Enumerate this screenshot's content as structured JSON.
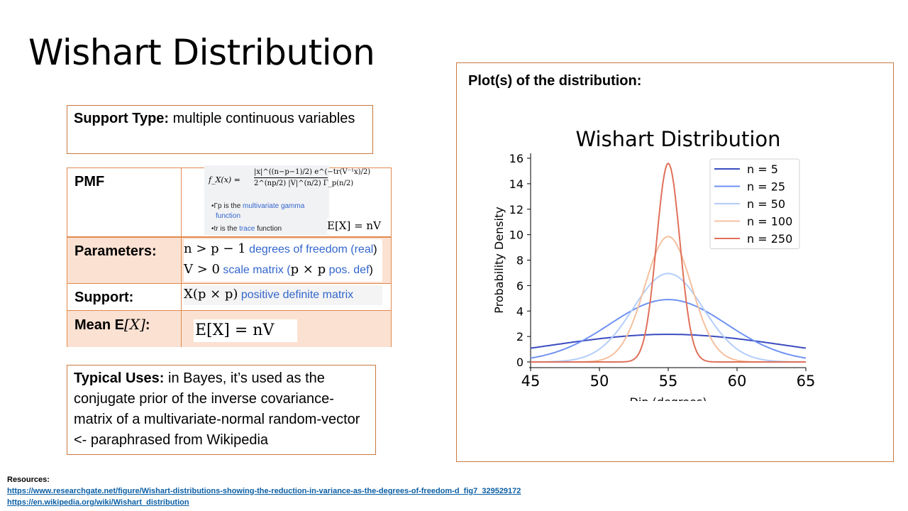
{
  "slide": {
    "title": "Wishart Distribution"
  },
  "support_type": {
    "label": "Support Type:",
    "value": " multiple continuous variables"
  },
  "pmf_table": {
    "pmf_label": "PMF",
    "formula_lhs": "f_X(x) =",
    "formula_num": "|x|^((n−p−1)/2) e^(−tr(V⁻¹x)/2)",
    "formula_den": "2^(np/2) |V|^(n/2) Γ_p(n/2)",
    "bullet_gamma_pre": "•Γp is the ",
    "bullet_gamma_link": "multivariate gamma",
    "bullet_gamma_link2": "function",
    "bullet_trace_pre": "•tr is the ",
    "bullet_trace_link": "trace",
    "bullet_trace_post": " function",
    "pmf_mean": "E[X] = nV",
    "params_label": "Parameters:",
    "param1_math": "n > p − 1",
    "param1_text": " degrees of freedom (",
    "param1_link": "real",
    "param1_end": ")",
    "param2_math": "V > 0",
    "param2_text": " scale matrix (",
    "param2_math2": "p × p",
    "param2_link": " pos. def",
    "param2_end": ")",
    "support_label": "Support:",
    "support_math": "X(p × p)",
    "support_link": " positive definite matrix",
    "mean_label": "Mean E",
    "mean_label_math": "[X]",
    "mean_label_end": ":",
    "mean_value": "E[X] = nV"
  },
  "typical_uses": {
    "label": "Typical Uses:",
    "value": " in Bayes, it’s used as the conjugate prior of the inverse covariance-matrix of a multivariate-normal random-vector <- paraphrased from Wikipedia"
  },
  "plot_panel": {
    "heading": "Plot(s) of the distribution:"
  },
  "chart_data": {
    "type": "line",
    "title": "Wishart Distribution",
    "xlabel": "Dip (degrees)",
    "ylabel": "Probability Density",
    "xlim": [
      45,
      65
    ],
    "ylim": [
      0,
      16
    ],
    "xticks": [
      45,
      50,
      55,
      60,
      65
    ],
    "yticks": [
      0,
      2,
      4,
      6,
      8,
      10,
      12,
      14,
      16
    ],
    "legend_position": "top-right",
    "grid": false,
    "x": [
      45,
      46,
      47,
      48,
      49,
      50,
      51,
      52,
      53,
      54,
      55,
      56,
      57,
      58,
      59,
      60,
      61,
      62,
      63,
      64,
      65
    ],
    "series": [
      {
        "name": "n = 5",
        "color": "#3a4cc0",
        "values": [
          1.4,
          1.52,
          1.64,
          1.76,
          1.87,
          1.96,
          2.04,
          2.1,
          2.14,
          2.16,
          2.17,
          2.16,
          2.14,
          2.1,
          2.04,
          1.96,
          1.87,
          1.76,
          1.64,
          1.52,
          1.4
        ]
      },
      {
        "name": "n = 25",
        "color": "#6f92f3",
        "values": [
          0.5,
          0.76,
          1.1,
          1.55,
          2.1,
          2.7,
          3.3,
          3.9,
          4.4,
          4.75,
          4.9,
          4.75,
          4.4,
          3.9,
          3.3,
          2.7,
          2.1,
          1.55,
          1.1,
          0.76,
          0.5
        ]
      },
      {
        "name": "n = 50",
        "color": "#b4cdfa",
        "values": [
          0.06,
          0.16,
          0.37,
          0.75,
          1.35,
          2.15,
          3.1,
          4.2,
          5.3,
          6.3,
          6.95,
          6.3,
          5.3,
          4.2,
          3.1,
          2.15,
          1.35,
          0.75,
          0.37,
          0.16,
          0.06
        ]
      },
      {
        "name": "n = 100",
        "color": "#f5c0a0",
        "values": [
          0.0,
          0.0,
          0.01,
          0.05,
          0.2,
          0.6,
          1.4,
          2.9,
          5.1,
          7.9,
          9.85,
          7.9,
          5.1,
          2.9,
          1.4,
          0.6,
          0.2,
          0.05,
          0.01,
          0.0,
          0.0
        ]
      },
      {
        "name": "n = 250",
        "color": "#e0705a",
        "values": [
          0.0,
          0.0,
          0.0,
          0.0,
          0.0,
          0.02,
          0.2,
          1.2,
          4.3,
          10.6,
          15.6,
          10.6,
          4.3,
          1.2,
          0.2,
          0.02,
          0.0,
          0.0,
          0.0,
          0.0,
          0.0
        ]
      }
    ]
  },
  "resources": {
    "title": "Resources:",
    "link1": "https://www.researchgate.net/figure/Wishart-distributions-showing-the-reduction-in-variance-as-the-degrees-of-freedom-d_fig7_329529172",
    "link2": "https://en.wikipedia.org/wiki/Wishart_distribution"
  }
}
